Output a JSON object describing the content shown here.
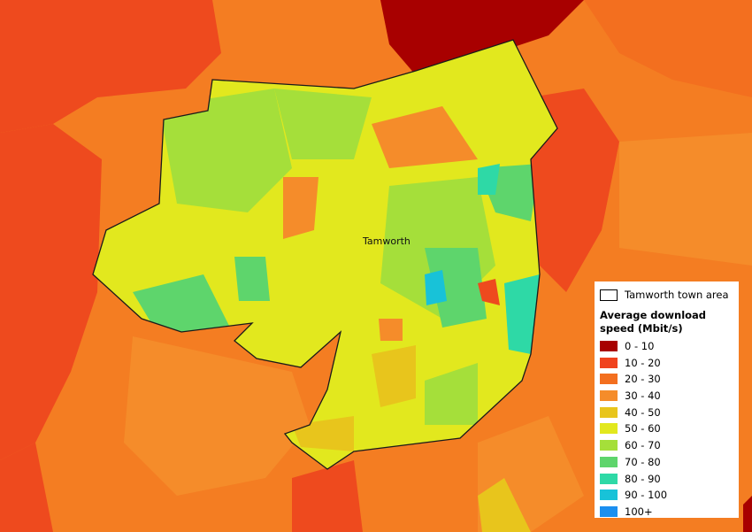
{
  "map": {
    "place_label": "Tamworth",
    "legend": {
      "outline_label": "Tamworth town area",
      "title": "Average download speed (Mbit/s)",
      "classes": [
        {
          "label": "0 - 10",
          "color": "#a80000"
        },
        {
          "label": "10 - 20",
          "color": "#f0421e"
        },
        {
          "label": "20 - 30",
          "color": "#f36f1f"
        },
        {
          "label": "30 - 40",
          "color": "#f58c2a"
        },
        {
          "label": "40 - 50",
          "color": "#e8c51c"
        },
        {
          "label": "50 - 60",
          "color": "#e2e81e"
        },
        {
          "label": "60 - 70",
          "color": "#a5df3a"
        },
        {
          "label": "70 - 80",
          "color": "#5ed56c"
        },
        {
          "label": "80 - 90",
          "color": "#2ed9a6"
        },
        {
          "label": "90 - 100",
          "color": "#18c2d8"
        },
        {
          "label": "100+",
          "color": "#1b8ff0"
        }
      ]
    }
  }
}
